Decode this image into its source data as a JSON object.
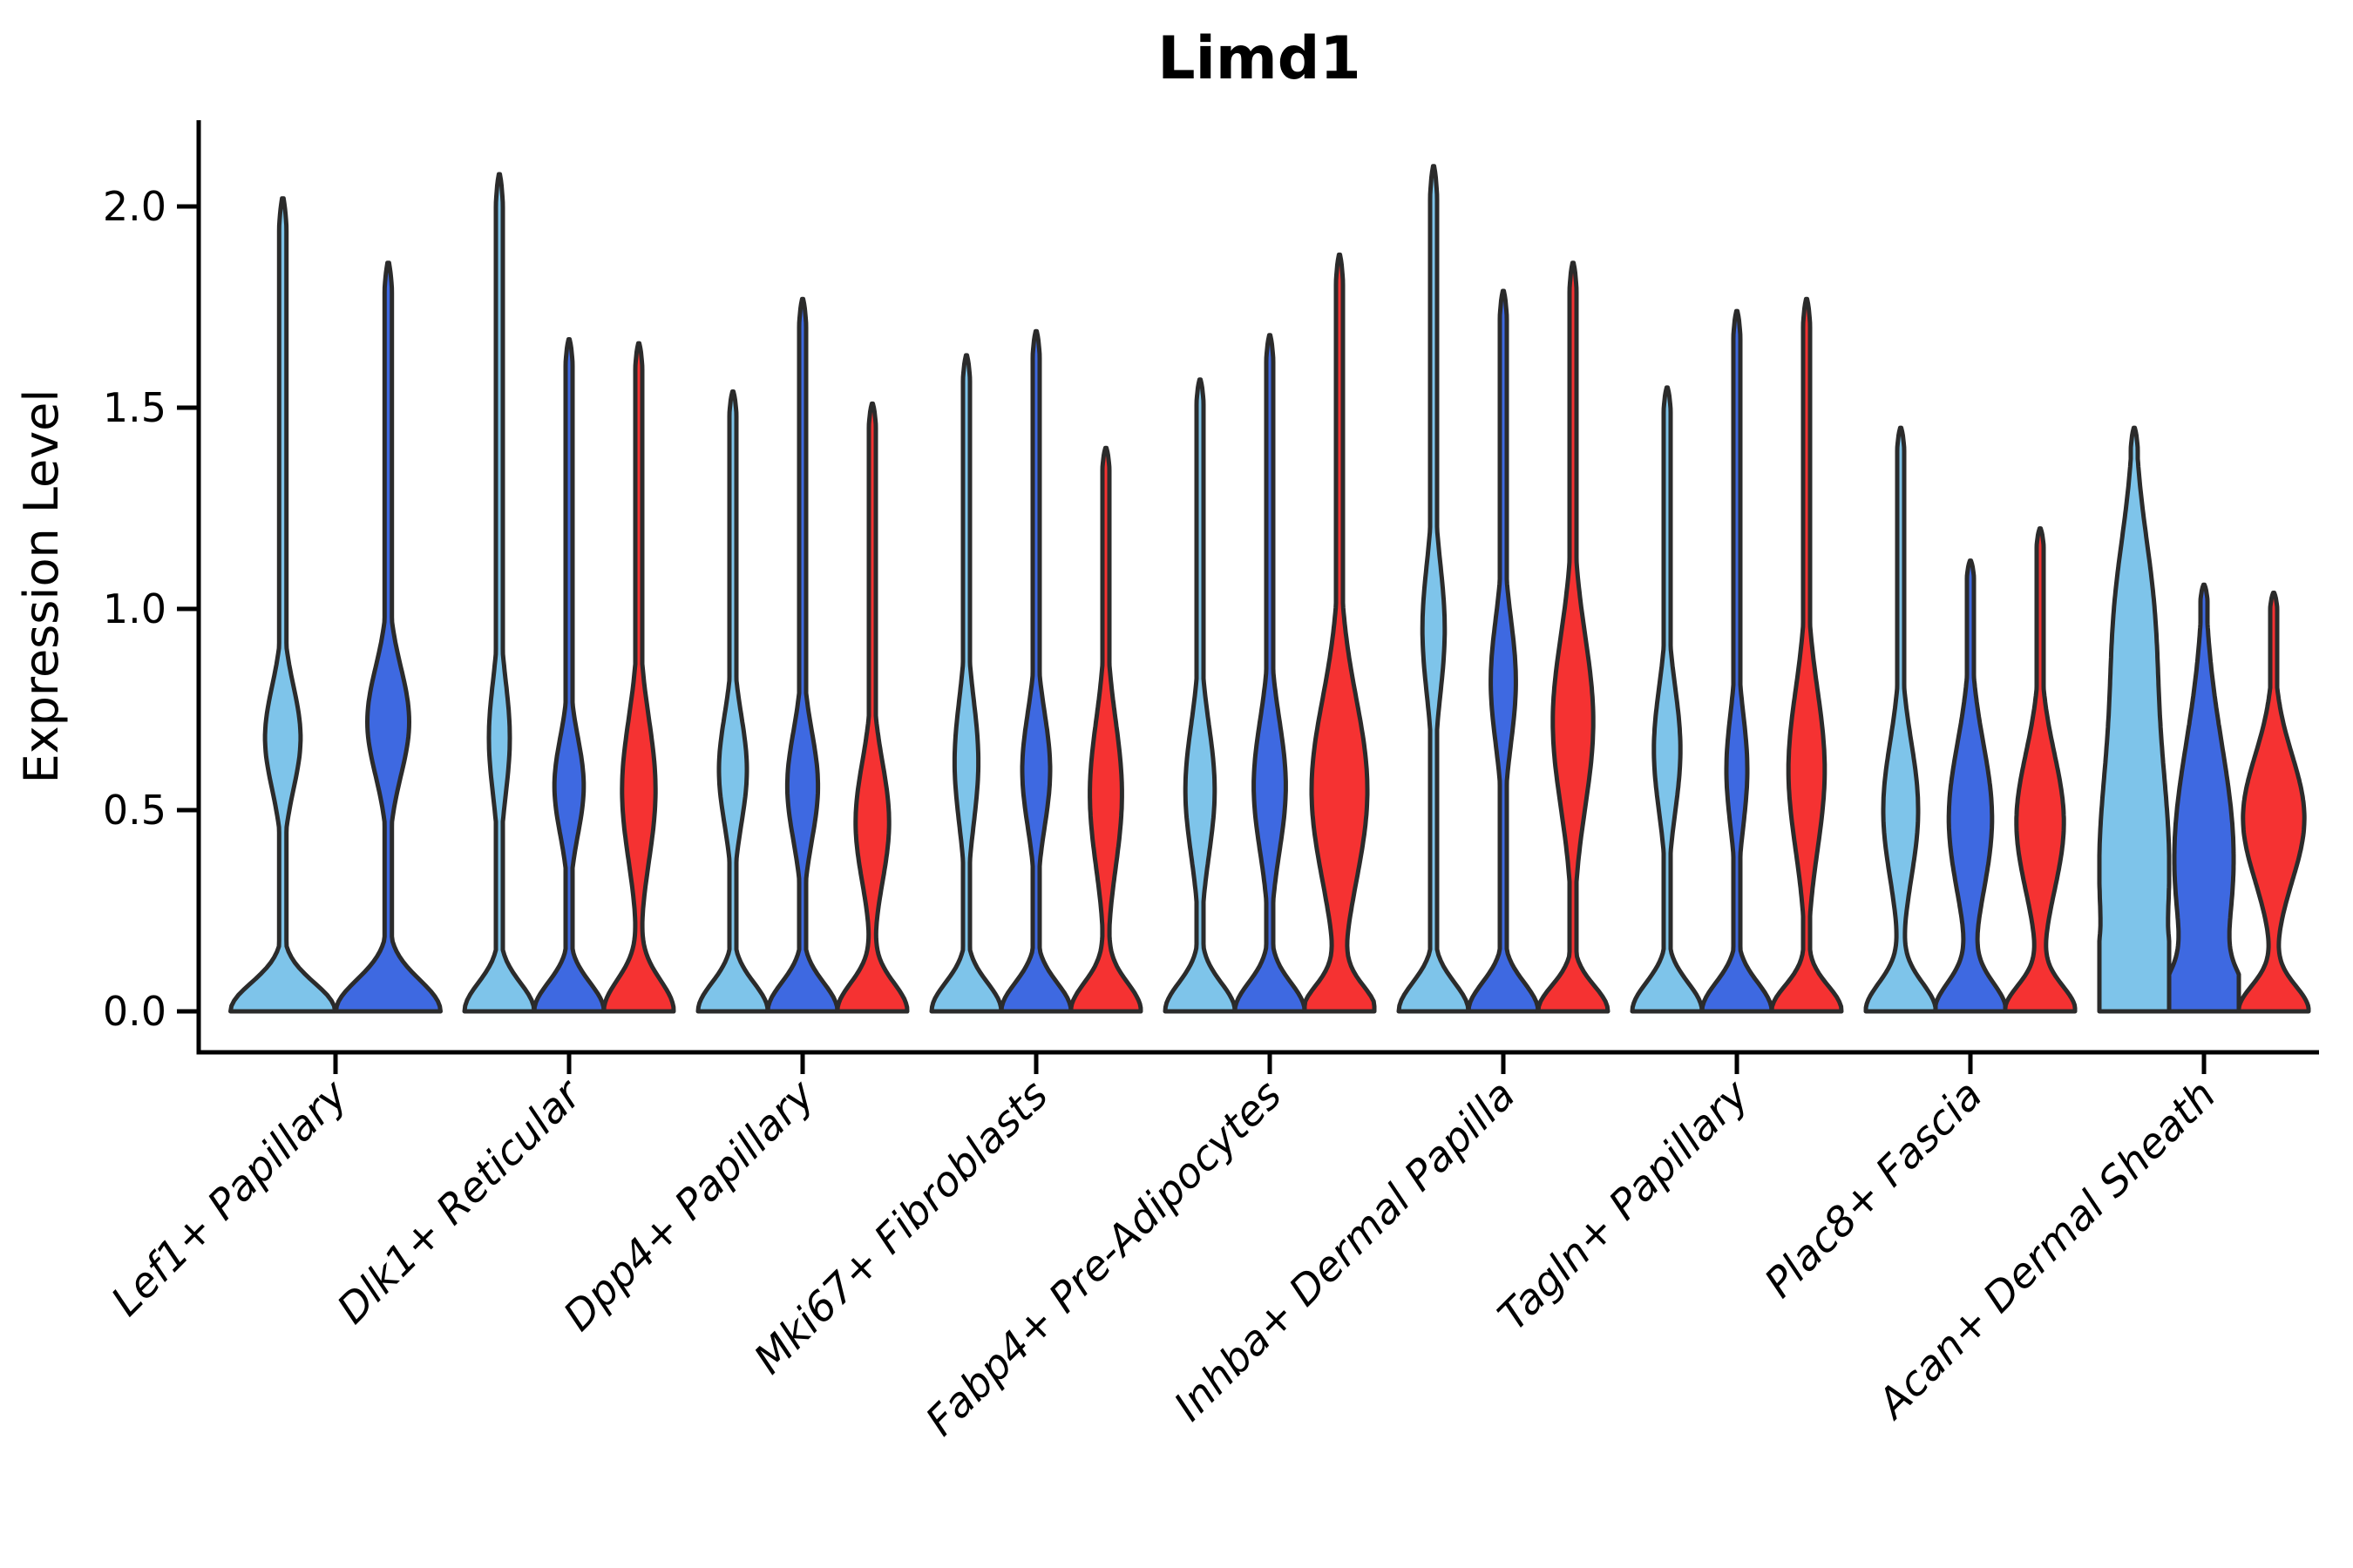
{
  "title": "Limd1",
  "ylabel": "Expression Level",
  "palette": {
    "series_lightblue": "#7EC4EA",
    "series_royalblue": "#3E69E1",
    "series_red": "#F53232",
    "violin_outline": "#2B2B2B",
    "axis_color": "#000000"
  },
  "chart_data": {
    "type": "violin",
    "title": "Limd1",
    "xlabel": "",
    "ylabel": "Expression Level",
    "ylim": [
      -0.1,
      2.22
    ],
    "grid": false,
    "legend": "none",
    "ytick_values": [
      0.0,
      0.5,
      1.0,
      1.5,
      2.0
    ],
    "ytick_labels": [
      "0.0",
      "0.5",
      "1.0",
      "1.5",
      "2.0"
    ],
    "categories": [
      "Lef1+ Papillary",
      "Dlk1+ Reticular",
      "Dpp4+ Papillary",
      "Mki67+ Fibroblasts",
      "Fabp4+ Pre-Adipocytes",
      "Inhba+ Dermal Papilla",
      "Tagln+ Papillary",
      "Plac8+ Fascia",
      "Acan+ Dermal Sheath"
    ],
    "series": [
      {
        "name": "series-light-blue",
        "color": "#7EC4EA",
        "violins": [
          {
            "max": 2.02,
            "mode": 0.68,
            "bulges": [
              [
                0.68,
                0.18,
                0.34
              ]
            ],
            "base_sigma": 0.1,
            "stem": 0.07
          },
          {
            "max": 2.08,
            "mode": 0.68,
            "bulges": [
              [
                0.68,
                0.2,
                0.3
              ]
            ],
            "base_sigma": 0.1,
            "stem": 0.1
          },
          {
            "max": 1.54,
            "mode": 0.6,
            "bulges": [
              [
                0.6,
                0.19,
                0.4
              ]
            ],
            "base_sigma": 0.1,
            "stem": 0.1
          },
          {
            "max": 1.63,
            "mode": 0.62,
            "bulges": [
              [
                0.62,
                0.22,
                0.34
              ]
            ],
            "base_sigma": 0.1,
            "stem": 0.1
          },
          {
            "max": 1.57,
            "mode": 0.55,
            "bulges": [
              [
                0.55,
                0.23,
                0.42
              ]
            ],
            "base_sigma": 0.1,
            "stem": 0.1
          },
          {
            "max": 2.1,
            "mode": 0.95,
            "bulges": [
              [
                0.95,
                0.23,
                0.32
              ]
            ],
            "base_sigma": 0.1,
            "stem": 0.1
          },
          {
            "max": 1.55,
            "mode": 0.65,
            "bulges": [
              [
                0.65,
                0.22,
                0.38
              ]
            ],
            "base_sigma": 0.1,
            "stem": 0.1
          },
          {
            "max": 1.45,
            "mode": 0.5,
            "bulges": [
              [
                0.5,
                0.24,
                0.5
              ]
            ],
            "base_sigma": 0.1,
            "stem": 0.1
          },
          {
            "max": 1.45,
            "mode": 0.35,
            "bulges": [
              [
                0.35,
                0.5,
                1.0
              ],
              [
                1.0,
                0.3,
                0.4
              ]
            ],
            "base_sigma": 0.12,
            "stem": 0.1
          }
        ]
      },
      {
        "name": "series-royal-blue",
        "color": "#3E69E1",
        "violins": [
          {
            "max": 1.86,
            "mode": 0.72,
            "bulges": [
              [
                0.72,
                0.19,
                0.4
              ]
            ],
            "base_sigma": 0.11,
            "stem": 0.07
          },
          {
            "max": 1.67,
            "mode": 0.56,
            "bulges": [
              [
                0.56,
                0.17,
                0.42
              ]
            ],
            "base_sigma": 0.1,
            "stem": 0.1
          },
          {
            "max": 1.77,
            "mode": 0.56,
            "bulges": [
              [
                0.56,
                0.19,
                0.44
              ]
            ],
            "base_sigma": 0.1,
            "stem": 0.1
          },
          {
            "max": 1.69,
            "mode": 0.6,
            "bulges": [
              [
                0.6,
                0.2,
                0.4
              ]
            ],
            "base_sigma": 0.1,
            "stem": 0.1
          },
          {
            "max": 1.68,
            "mode": 0.56,
            "bulges": [
              [
                0.56,
                0.23,
                0.46
              ]
            ],
            "base_sigma": 0.1,
            "stem": 0.1
          },
          {
            "max": 1.79,
            "mode": 0.82,
            "bulges": [
              [
                0.82,
                0.22,
                0.36
              ]
            ],
            "base_sigma": 0.1,
            "stem": 0.1
          },
          {
            "max": 1.74,
            "mode": 0.6,
            "bulges": [
              [
                0.6,
                0.2,
                0.3
              ]
            ],
            "base_sigma": 0.1,
            "stem": 0.1
          },
          {
            "max": 1.12,
            "mode": 0.48,
            "bulges": [
              [
                0.48,
                0.26,
                0.62
              ]
            ],
            "base_sigma": 0.1,
            "stem": 0.1
          },
          {
            "max": 1.06,
            "mode": 0.38,
            "bulges": [
              [
                0.38,
                0.4,
                0.85
              ]
            ],
            "base_sigma": 0.11,
            "stem": 0.1
          }
        ]
      },
      {
        "name": "series-red",
        "color": "#F53232",
        "violins": [
          null,
          {
            "max": 1.66,
            "mode": 0.55,
            "bulges": [
              [
                0.55,
                0.25,
                0.48
              ]
            ],
            "base_sigma": 0.11,
            "stem": 0.1
          },
          {
            "max": 1.51,
            "mode": 0.47,
            "bulges": [
              [
                0.47,
                0.21,
                0.48
              ]
            ],
            "base_sigma": 0.1,
            "stem": 0.1
          },
          {
            "max": 1.4,
            "mode": 0.54,
            "bulges": [
              [
                0.54,
                0.26,
                0.46
              ]
            ],
            "base_sigma": 0.1,
            "stem": 0.1
          },
          {
            "max": 1.88,
            "mode": 0.55,
            "bulges": [
              [
                0.55,
                0.32,
                0.8
              ]
            ],
            "base_sigma": 0.09,
            "stem": 0.1
          },
          {
            "max": 1.86,
            "mode": 0.72,
            "bulges": [
              [
                0.72,
                0.3,
                0.58
              ]
            ],
            "base_sigma": 0.09,
            "stem": 0.1
          },
          {
            "max": 1.77,
            "mode": 0.6,
            "bulges": [
              [
                0.6,
                0.28,
                0.52
              ]
            ],
            "base_sigma": 0.09,
            "stem": 0.1
          },
          {
            "max": 1.2,
            "mode": 0.47,
            "bulges": [
              [
                0.47,
                0.24,
                0.68
              ]
            ],
            "base_sigma": 0.09,
            "stem": 0.1
          },
          {
            "max": 1.04,
            "mode": 0.48,
            "bulges": [
              [
                0.48,
                0.22,
                0.88
              ]
            ],
            "base_sigma": 0.09,
            "stem": 0.1
          }
        ]
      }
    ]
  }
}
